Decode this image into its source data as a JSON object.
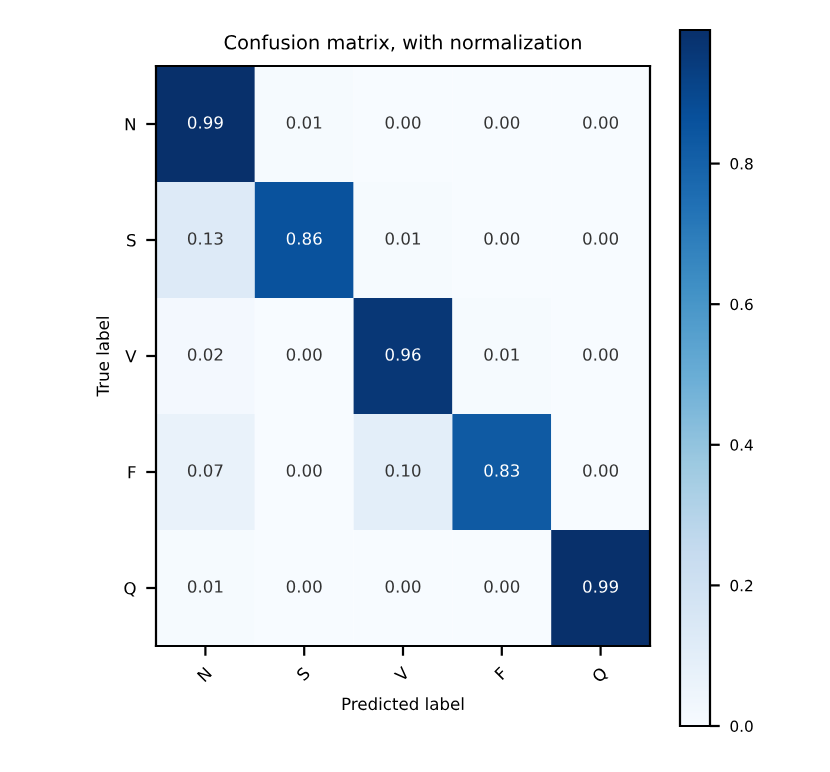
{
  "chart_data": {
    "type": "heatmap",
    "title": "Confusion matrix, with normalization",
    "xlabel": "Predicted label",
    "ylabel": "True label",
    "categories": [
      "N",
      "S",
      "V",
      "F",
      "Q"
    ],
    "y_categories": [
      "N",
      "S",
      "V",
      "F",
      "Q"
    ],
    "cells": [
      [
        0.99,
        0.01,
        0.0,
        0.0,
        0.0
      ],
      [
        0.13,
        0.86,
        0.01,
        0.0,
        0.0
      ],
      [
        0.02,
        0.0,
        0.96,
        0.01,
        0.0
      ],
      [
        0.07,
        0.0,
        0.1,
        0.83,
        0.0
      ],
      [
        0.01,
        0.0,
        0.0,
        0.0,
        0.99
      ]
    ],
    "cell_labels": [
      [
        "0.99",
        "0.01",
        "0.00",
        "0.00",
        "0.00"
      ],
      [
        "0.13",
        "0.86",
        "0.01",
        "0.00",
        "0.00"
      ],
      [
        "0.02",
        "0.00",
        "0.96",
        "0.01",
        "0.00"
      ],
      [
        "0.07",
        "0.00",
        "0.10",
        "0.83",
        "0.00"
      ],
      [
        "0.01",
        "0.00",
        "0.00",
        "0.00",
        "0.99"
      ]
    ],
    "clim": [
      0.0,
      0.99
    ],
    "cticks": [
      {
        "value": 0,
        "label": "0.0"
      },
      0.2,
      0.4,
      0.6,
      0.8
    ],
    "grid": false
  }
}
